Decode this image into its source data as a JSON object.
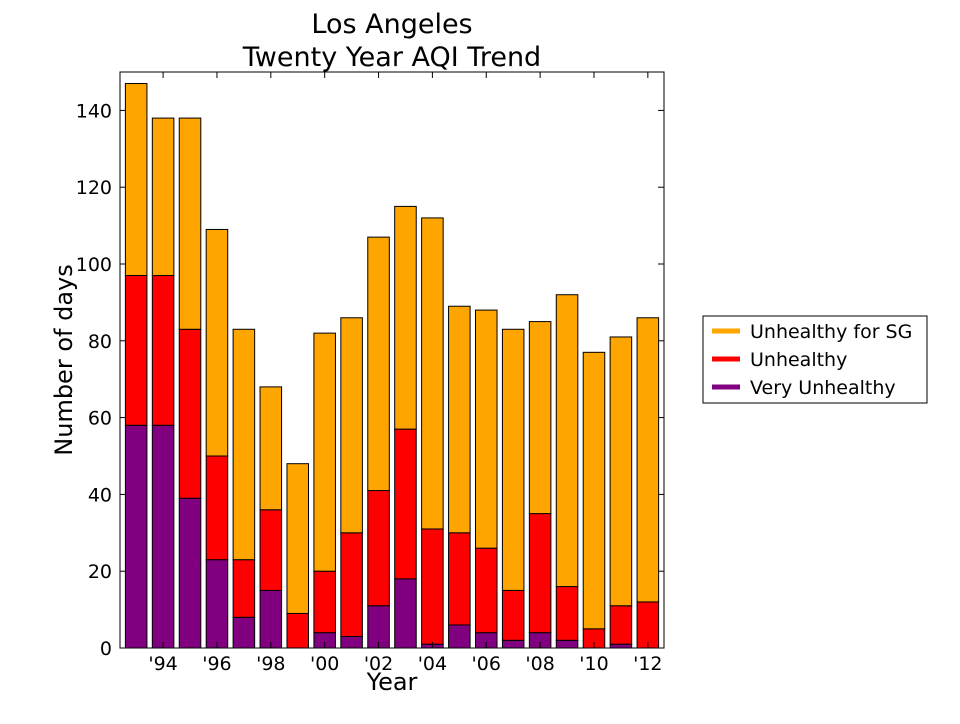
{
  "chart_data": {
    "type": "bar",
    "stacked": true,
    "title": [
      "Los Angeles",
      "Twenty Year AQI Trend"
    ],
    "xlabel": "Year",
    "ylabel": "Number of days",
    "x": [
      1993,
      1994,
      1995,
      1996,
      1997,
      1998,
      1999,
      2000,
      2001,
      2002,
      2003,
      2004,
      2005,
      2006,
      2007,
      2008,
      2009,
      2010,
      2011,
      2012
    ],
    "xticks": [
      1994,
      1996,
      1998,
      2000,
      2002,
      2004,
      2006,
      2008,
      2010,
      2012
    ],
    "xtick_labels": [
      "'94",
      "'96",
      "'98",
      "'00",
      "'02",
      "'04",
      "'06",
      "'08",
      "'10",
      "'12"
    ],
    "xlim": [
      1992.4,
      2012.6
    ],
    "ylim": [
      0,
      150
    ],
    "yticks": [
      0,
      20,
      40,
      60,
      80,
      100,
      120,
      140
    ],
    "grid": false,
    "legend_placement": "outside-right",
    "series": [
      {
        "name": "Very Unhealthy",
        "color": "#800080",
        "values": [
          58,
          58,
          39,
          23,
          8,
          15,
          0,
          4,
          3,
          11,
          18,
          1,
          6,
          4,
          2,
          4,
          2,
          0,
          1,
          0
        ]
      },
      {
        "name": "Unhealthy",
        "color": "#ff0000",
        "values": [
          39,
          39,
          44,
          27,
          15,
          21,
          9,
          16,
          27,
          30,
          39,
          30,
          24,
          22,
          13,
          31,
          14,
          5,
          10,
          12
        ]
      },
      {
        "name": "Unhealthy for SG",
        "color": "#ffa500",
        "values": [
          50,
          41,
          55,
          59,
          60,
          32,
          39,
          62,
          56,
          66,
          58,
          81,
          59,
          62,
          68,
          50,
          76,
          72,
          70,
          74
        ]
      }
    ],
    "legend_order": [
      "Unhealthy for SG",
      "Unhealthy",
      "Very Unhealthy"
    ]
  }
}
